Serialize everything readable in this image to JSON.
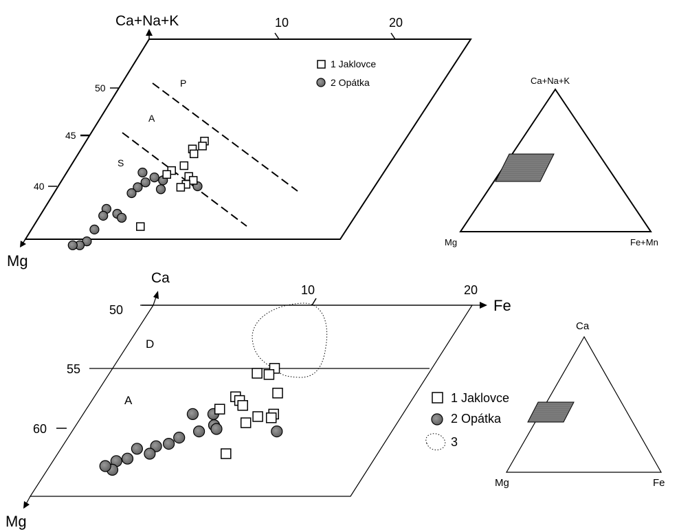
{
  "chart_data": [
    {
      "type": "scatter",
      "name": "upper-ternary-detail",
      "axis_labels": {
        "apex_top": "Ca+Na+K",
        "apex_bottom": "Mg"
      },
      "x_ticks": [
        "10",
        "20"
      ],
      "y_ticks": [
        "50",
        "45",
        "40"
      ],
      "field_labels": [
        "P",
        "A",
        "S"
      ],
      "legend": [
        "1 Jaklovce",
        "2 Opátka"
      ],
      "series": [
        {
          "name": "1 Jaklovce",
          "marker": "open-square",
          "points": [
            [
              10.2,
              44.6
            ],
            [
              10.3,
              44.1
            ],
            [
              9.6,
              43.8
            ],
            [
              10.0,
              43.3
            ],
            [
              9.8,
              42.1
            ],
            [
              9.0,
              41.6
            ],
            [
              8.8,
              41.2
            ],
            [
              10.8,
              41.0
            ],
            [
              11.4,
              40.6
            ],
            [
              11.0,
              40.2
            ],
            [
              10.7,
              39.9
            ],
            [
              9.4,
              35.9
            ]
          ]
        },
        {
          "name": "2 Opátka",
          "marker": "filled-circle",
          "points": [
            [
              6.6,
              41.4
            ],
            [
              7.9,
              40.9
            ],
            [
              7.4,
              40.4
            ],
            [
              8.8,
              40.6
            ],
            [
              7.0,
              39.9
            ],
            [
              9.1,
              39.7
            ],
            [
              12.1,
              40.0
            ],
            [
              6.8,
              39.3
            ],
            [
              5.5,
              37.7
            ],
            [
              5.6,
              37.0
            ],
            [
              6.7,
              37.2
            ],
            [
              7.3,
              36.8
            ],
            [
              5.6,
              35.6
            ],
            [
              5.6,
              34.4
            ],
            [
              5.2,
              34.0
            ],
            [
              4.6,
              34.0
            ]
          ]
        }
      ]
    },
    {
      "type": "ternary-inset",
      "name": "upper-inset",
      "vertices": [
        "Ca+Na+K",
        "Mg",
        "Fe+Mn"
      ],
      "highlight": "shaded field"
    },
    {
      "type": "scatter",
      "name": "lower-ternary-detail",
      "axis_labels": {
        "apex_top": "Ca",
        "apex_bottom": "Mg",
        "right": "Fe"
      },
      "x_ticks": [
        "10",
        "20"
      ],
      "y_ticks": [
        "50",
        "55",
        "60"
      ],
      "field_labels": [
        "D",
        "A"
      ],
      "legend": [
        "1 Jaklovce",
        "2 Opátka",
        "3"
      ],
      "series": [
        {
          "name": "1 Jaklovce",
          "marker": "open-square",
          "points": [
            [
              10.2,
              55.1
            ],
            [
              10.1,
              55.6
            ],
            [
              9.3,
              55.5
            ],
            [
              8.9,
              57.4
            ],
            [
              9.3,
              57.7
            ],
            [
              9.7,
              58.1
            ],
            [
              11.4,
              57.1
            ],
            [
              8.4,
              58.4
            ],
            [
              12.0,
              58.8
            ],
            [
              11.1,
              59.0
            ],
            [
              12.0,
              59.1
            ],
            [
              10.6,
              59.5
            ],
            [
              10.6,
              62.0
            ]
          ]
        },
        {
          "name": "2 Opátka",
          "marker": "filled-circle",
          "points": [
            [
              6.9,
              58.8
            ],
            [
              8.2,
              58.8
            ],
            [
              8.7,
              59.7
            ],
            [
              12.9,
              60.2
            ],
            [
              8.0,
              60.2
            ],
            [
              9.0,
              60.0
            ],
            [
              7.0,
              60.7
            ],
            [
              6.6,
              61.2
            ],
            [
              5.9,
              61.4
            ],
            [
              4.8,
              61.6
            ],
            [
              5.8,
              62.0
            ],
            [
              4.6,
              62.4
            ],
            [
              4.0,
              62.6
            ],
            [
              4.1,
              63.3
            ],
            [
              3.5,
              63.0
            ]
          ]
        }
      ],
      "field_outline": {
        "label": "3",
        "style": "dotted"
      }
    },
    {
      "type": "ternary-inset",
      "name": "lower-inset",
      "vertices": [
        "Ca",
        "Mg",
        "Fe"
      ],
      "highlight": "shaded field"
    }
  ],
  "colors": {
    "ink": "#000000",
    "marker_fill": "#777777",
    "shade": "#888888"
  }
}
